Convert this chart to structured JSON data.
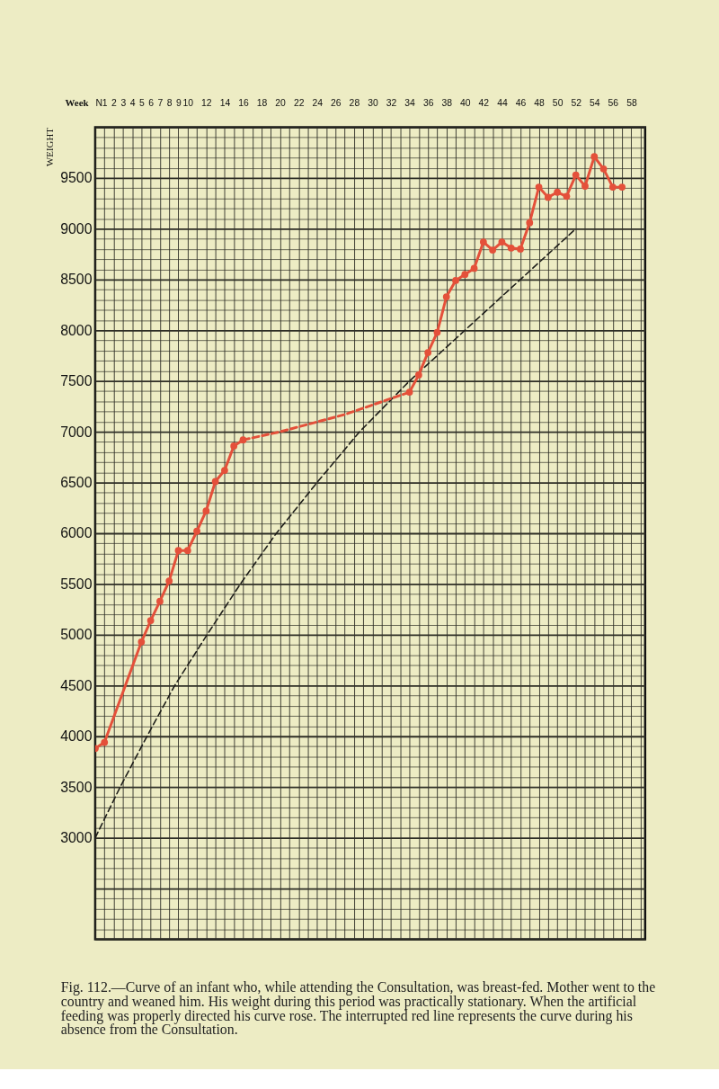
{
  "chart_data": {
    "type": "line",
    "xlabel": "Week",
    "ylabel": "WEIGHT",
    "annotations": [
      "Fig. 112.—Curve of an infant who, while attending the Consultation, was breast-fed. Mother went to the country and weaned him. His weight during this period was practically stationary. When the artificial feeding was properly directed his curve rose. The interrupted red line represents the curve during his absence from the Consultation."
    ],
    "xlim": [
      0,
      59.5
    ],
    "xticks": [
      {
        "value": 0,
        "label": "N"
      },
      1,
      2,
      3,
      4,
      5,
      6,
      7,
      8,
      9,
      10,
      {
        "value": 11,
        "label": null
      },
      12,
      {
        "value": 13,
        "label": null
      },
      14,
      {
        "value": 15,
        "label": null
      },
      16,
      {
        "value": 17,
        "label": null
      },
      18,
      {
        "value": 19,
        "label": null
      },
      20,
      {
        "value": 21,
        "label": null
      },
      22,
      {
        "value": 23,
        "label": null
      },
      24,
      {
        "value": 25,
        "label": null
      },
      26,
      {
        "value": 27,
        "label": null
      },
      28,
      {
        "value": 29,
        "label": null
      },
      30,
      {
        "value": 31,
        "label": null
      },
      32,
      {
        "value": 33,
        "label": null
      },
      34,
      {
        "value": 35,
        "label": null
      },
      36,
      {
        "value": 37,
        "label": null
      },
      38,
      {
        "value": 39,
        "label": null
      },
      40,
      {
        "value": 41,
        "label": null
      },
      42,
      {
        "value": 43,
        "label": null
      },
      44,
      {
        "value": 45,
        "label": null
      },
      46,
      {
        "value": 47,
        "label": null
      },
      48,
      {
        "value": 49,
        "label": null
      },
      50,
      {
        "value": 51,
        "label": null
      },
      52,
      {
        "value": 53,
        "label": null
      },
      54,
      {
        "value": 55,
        "label": null
      },
      56,
      {
        "value": 57,
        "label": null
      },
      58,
      {
        "value": 59,
        "label": null
      }
    ],
    "ylim": [
      2000,
      10000
    ],
    "yticks": [
      {
        "value": 2000,
        "label": null
      },
      {
        "value": 2100,
        "label": null
      },
      {
        "value": 2200,
        "label": null
      },
      {
        "value": 2300,
        "label": null
      },
      {
        "value": 2400,
        "label": null
      },
      {
        "value": 2500,
        "label": null
      },
      {
        "value": 2600,
        "label": null
      },
      {
        "value": 2700,
        "label": null
      },
      {
        "value": 2800,
        "label": null
      },
      {
        "value": 2900,
        "label": null
      },
      3000,
      {
        "value": 3100,
        "label": null
      },
      {
        "value": 3200,
        "label": null
      },
      {
        "value": 3300,
        "label": null
      },
      {
        "value": 3400,
        "label": null
      },
      3500,
      {
        "value": 3600,
        "label": null
      },
      {
        "value": 3700,
        "label": null
      },
      {
        "value": 3800,
        "label": null
      },
      {
        "value": 3900,
        "label": null
      },
      4000,
      {
        "value": 4100,
        "label": null
      },
      {
        "value": 4200,
        "label": null
      },
      {
        "value": 4300,
        "label": null
      },
      {
        "value": 4400,
        "label": null
      },
      4500,
      {
        "value": 4600,
        "label": null
      },
      {
        "value": 4700,
        "label": null
      },
      {
        "value": 4800,
        "label": null
      },
      {
        "value": 4900,
        "label": null
      },
      5000,
      {
        "value": 5100,
        "label": null
      },
      {
        "value": 5200,
        "label": null
      },
      {
        "value": 5300,
        "label": null
      },
      {
        "value": 5400,
        "label": null
      },
      5500,
      {
        "value": 5600,
        "label": null
      },
      {
        "value": 5700,
        "label": null
      },
      {
        "value": 5800,
        "label": null
      },
      {
        "value": 5900,
        "label": null
      },
      6000,
      {
        "value": 6100,
        "label": null
      },
      {
        "value": 6200,
        "label": null
      },
      {
        "value": 6300,
        "label": null
      },
      {
        "value": 6400,
        "label": null
      },
      6500,
      {
        "value": 6600,
        "label": null
      },
      {
        "value": 6700,
        "label": null
      },
      {
        "value": 6800,
        "label": null
      },
      {
        "value": 6900,
        "label": null
      },
      7000,
      {
        "value": 7100,
        "label": null
      },
      {
        "value": 7200,
        "label": null
      },
      {
        "value": 7300,
        "label": null
      },
      {
        "value": 7400,
        "label": null
      },
      7500,
      {
        "value": 7600,
        "label": null
      },
      {
        "value": 7700,
        "label": null
      },
      {
        "value": 7800,
        "label": null
      },
      {
        "value": 7900,
        "label": null
      },
      8000,
      {
        "value": 8100,
        "label": null
      },
      {
        "value": 8200,
        "label": null
      },
      {
        "value": 8300,
        "label": null
      },
      {
        "value": 8400,
        "label": null
      },
      8500,
      {
        "value": 8600,
        "label": null
      },
      {
        "value": 8700,
        "label": null
      },
      {
        "value": 8800,
        "label": null
      },
      {
        "value": 8900,
        "label": null
      },
      9000,
      {
        "value": 9100,
        "label": null
      },
      {
        "value": 9200,
        "label": null
      },
      {
        "value": 9300,
        "label": null
      },
      {
        "value": 9400,
        "label": null
      },
      9500,
      {
        "value": 9600,
        "label": null
      },
      {
        "value": 9700,
        "label": null
      },
      {
        "value": 9800,
        "label": null
      },
      {
        "value": 9900,
        "label": null
      },
      {
        "value": 10000,
        "label": null
      }
    ],
    "grid": true,
    "series": [
      {
        "color": "#1e1e1a",
        "marker": "none",
        "line_style": "dashed",
        "x": [
          0,
          2.7,
          5.6,
          8.6,
          12.1,
          15.7,
          19.6,
          24,
          28.6,
          34,
          40,
          46,
          52
        ],
        "values": [
          3000,
          3500,
          4000,
          4500,
          5000,
          5500,
          6000,
          6500,
          7000,
          7500,
          8000,
          8500,
          9000
        ]
      },
      {
        "color": "#e4503a",
        "marker": "circle",
        "line_style": "solid",
        "x": [
          0,
          1,
          5,
          6,
          7,
          8,
          9,
          10,
          11,
          12,
          13,
          14,
          15,
          16
        ],
        "values": [
          3880,
          3940,
          4930,
          5140,
          5330,
          5530,
          5830,
          5830,
          6020,
          6220,
          6510,
          6620,
          6860,
          6920
        ]
      },
      {
        "color": "#e4503a",
        "marker": "none",
        "line_style": "dashed",
        "x": [
          16,
          20,
          27,
          34
        ],
        "values": [
          6920,
          7000,
          7170,
          7390
        ]
      },
      {
        "color": "#e4503a",
        "marker": "circle",
        "line_style": "solid",
        "x": [
          34,
          35,
          36,
          37,
          38,
          39,
          40,
          41,
          42,
          43,
          44,
          45,
          46,
          47,
          48,
          49,
          50,
          51,
          52,
          53,
          54,
          55,
          56,
          57
        ],
        "values": [
          7390,
          7560,
          7780,
          7980,
          8330,
          8490,
          8550,
          8610,
          8870,
          8790,
          8870,
          8810,
          8800,
          9060,
          9410,
          9310,
          9360,
          9320,
          9530,
          9420,
          9710,
          9590,
          9410,
          9410
        ]
      }
    ]
  }
}
